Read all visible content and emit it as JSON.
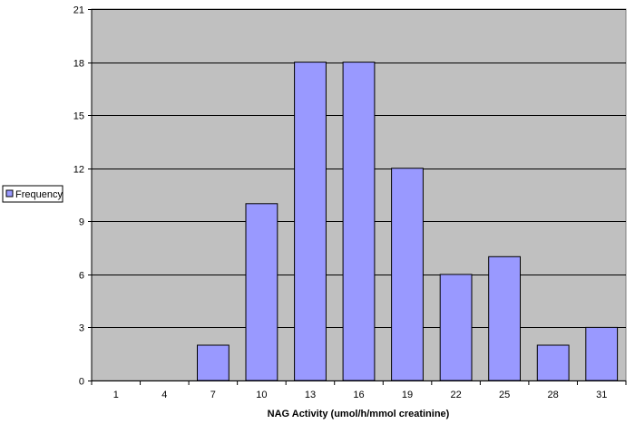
{
  "chart_data": {
    "type": "bar",
    "categories": [
      "1",
      "4",
      "7",
      "10",
      "13",
      "16",
      "19",
      "22",
      "25",
      "28",
      "31"
    ],
    "series": [
      {
        "name": "Frequency",
        "values": [
          0,
          0,
          2,
          10,
          18,
          18,
          12,
          6,
          7,
          2,
          3
        ]
      }
    ],
    "xlabel": "NAG Activity (umol/h/mmol creatinine)",
    "ylabel": "",
    "ylim": [
      0,
      21
    ],
    "yticks": [
      0,
      3,
      6,
      9,
      12,
      15,
      18,
      21
    ],
    "grid": true,
    "legend_position": "left",
    "colors": {
      "bar_fill": "#9999ff",
      "bar_stroke": "#000000",
      "plot_background": "#c0c0c0",
      "grid": "#000000"
    }
  }
}
